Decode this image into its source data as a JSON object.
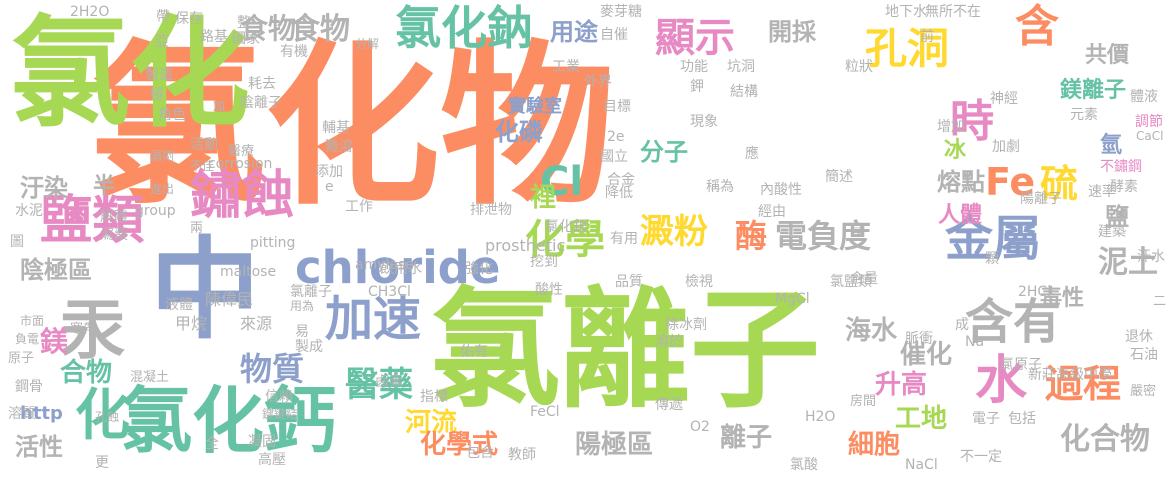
{
  "words": [
    {
      "text": "氯化物",
      "color": "#fc8d62"
    },
    {
      "text": "氯離子",
      "color": "#a6d854"
    },
    {
      "text": "氯化",
      "color": "#a6d854"
    },
    {
      "text": "中",
      "color": "#8da0cb"
    },
    {
      "text": "氯化鈣",
      "color": "#66c2a5"
    },
    {
      "text": "化",
      "color": "#66c2a5"
    },
    {
      "text": "汞",
      "color": "#b3b3b3"
    },
    {
      "text": "鹽類",
      "color": "#e78ac3"
    },
    {
      "text": "鏽蝕",
      "color": "#e78ac3"
    },
    {
      "text": "氯化鈉",
      "color": "#66c2a5"
    },
    {
      "text": "顯示",
      "color": "#e78ac3"
    },
    {
      "text": "孔洞",
      "color": "#ffd92f"
    },
    {
      "text": "含",
      "color": "#fc8d62"
    },
    {
      "text": "時",
      "color": "#e78ac3"
    },
    {
      "text": "硫",
      "color": "#ffd92f"
    },
    {
      "text": "Fe",
      "color": "#fc8d62"
    },
    {
      "text": "金屬",
      "color": "#8da0cb"
    },
    {
      "text": "chloride",
      "color": "#8da0cb"
    },
    {
      "text": "Cl",
      "color": "#66c2a5"
    },
    {
      "text": "化學",
      "color": "#a6d854"
    },
    {
      "text": "澱粉",
      "color": "#ffd92f"
    },
    {
      "text": "酶",
      "color": "#fc8d62"
    },
    {
      "text": "電負度",
      "color": "#b3b3b3"
    },
    {
      "text": "加速",
      "color": "#8da0cb"
    },
    {
      "text": "含有",
      "color": "#b3b3b3"
    },
    {
      "text": "水",
      "color": "#e78ac3"
    },
    {
      "text": "過程",
      "color": "#fc8d62"
    },
    {
      "text": "醫藥",
      "color": "#66c2a5"
    },
    {
      "text": "物質",
      "color": "#8da0cb"
    },
    {
      "text": "食物",
      "color": "#b3b3b3"
    },
    {
      "text": "用途",
      "color": "#8da0cb"
    },
    {
      "text": "開採",
      "color": "#b3b3b3"
    },
    {
      "text": "共價",
      "color": "#b3b3b3"
    },
    {
      "text": "鎂離子",
      "color": "#66c2a5"
    },
    {
      "text": "分子",
      "color": "#66c2a5"
    },
    {
      "text": "化磷",
      "color": "#8da0cb"
    },
    {
      "text": "熔點",
      "color": "#b3b3b3"
    },
    {
      "text": "冰",
      "color": "#a6d854"
    },
    {
      "text": "氫",
      "color": "#8da0cb"
    },
    {
      "text": "人體",
      "color": "#e78ac3"
    },
    {
      "text": "泥土",
      "color": "#b3b3b3"
    },
    {
      "text": "鹽",
      "color": "#b3b3b3"
    },
    {
      "text": "毒性",
      "color": "#b3b3b3"
    },
    {
      "text": "陰極區",
      "color": "#b3b3b3"
    },
    {
      "text": "汙染",
      "color": "#b3b3b3"
    },
    {
      "text": "半",
      "color": "#b3b3b3"
    },
    {
      "text": "合物",
      "color": "#66c2a5"
    },
    {
      "text": "鎂",
      "color": "#e78ac3"
    },
    {
      "text": "海水",
      "color": "#b3b3b3"
    },
    {
      "text": "升高",
      "color": "#e78ac3"
    },
    {
      "text": "催化",
      "color": "#b3b3b3"
    },
    {
      "text": "河流",
      "color": "#ffd92f"
    },
    {
      "text": "化學式",
      "color": "#fc8d62"
    },
    {
      "text": "陽極區",
      "color": "#b3b3b3"
    },
    {
      "text": "離子",
      "color": "#b3b3b3"
    },
    {
      "text": "細胞",
      "color": "#fc8d62"
    },
    {
      "text": "工地",
      "color": "#a6d854"
    },
    {
      "text": "化合物",
      "color": "#b3b3b3"
    },
    {
      "text": "活性",
      "color": "#b3b3b3"
    },
    {
      "text": "http",
      "color": "#8da0cb"
    },
    {
      "text": "實驗室",
      "color": "#8da0cb"
    },
    {
      "text": "裡",
      "color": "#a6d854"
    },
    {
      "text": "食物",
      "color": "#b3b3b3"
    },
    {
      "text": "不鏽鋼",
      "color": "#e78ac3"
    },
    {
      "text": "神經",
      "color": "#b3b3b3"
    },
    {
      "text": "元素",
      "color": "#b3b3b3"
    },
    {
      "text": "體液",
      "color": "#b3b3b3"
    },
    {
      "text": "調節",
      "color": "#e78ac3"
    },
    {
      "text": "CaCl",
      "color": "#b3b3b3"
    },
    {
      "text": "加劇",
      "color": "#b3b3b3"
    },
    {
      "text": "陽離子",
      "color": "#b3b3b3"
    },
    {
      "text": "速率",
      "color": "#b3b3b3"
    },
    {
      "text": "酵素",
      "color": "#b3b3b3"
    },
    {
      "text": "建築",
      "color": "#b3b3b3"
    },
    {
      "text": "汗水",
      "color": "#b3b3b3"
    },
    {
      "text": "退休",
      "color": "#b3b3b3"
    },
    {
      "text": "石油",
      "color": "#b3b3b3"
    },
    {
      "text": "嚴密",
      "color": "#b3b3b3"
    },
    {
      "text": "新莊高級中學",
      "color": "#b3b3b3"
    },
    {
      "text": "氯原子",
      "color": "#b3b3b3"
    },
    {
      "text": "電子",
      "color": "#b3b3b3"
    },
    {
      "text": "包括",
      "color": "#b3b3b3"
    },
    {
      "text": "房間",
      "color": "#b3b3b3"
    },
    {
      "text": "不一定",
      "color": "#b3b3b3"
    },
    {
      "text": "NaCl",
      "color": "#b3b3b3"
    },
    {
      "text": "H2O",
      "color": "#b3b3b3"
    },
    {
      "text": "氯酸",
      "color": "#b3b3b3"
    },
    {
      "text": "教師",
      "color": "#b3b3b3"
    },
    {
      "text": "包含",
      "color": "#b3b3b3"
    },
    {
      "text": "FeCl",
      "color": "#b3b3b3"
    },
    {
      "text": "傳遞",
      "color": "#b3b3b3"
    },
    {
      "text": "指標",
      "color": "#b3b3b3"
    },
    {
      "text": "鹵素",
      "color": "#b3b3b3"
    },
    {
      "text": "佑有",
      "color": "#b3b3b3"
    },
    {
      "text": "溶於",
      "color": "#b3b3b3"
    },
    {
      "text": "脈衝",
      "color": "#b3b3b3"
    },
    {
      "text": "成",
      "color": "#b3b3b3"
    },
    {
      "text": "Na",
      "color": "#b3b3b3"
    },
    {
      "text": "MgCl",
      "color": "#b3b3b3"
    },
    {
      "text": "含量",
      "color": "#b3b3b3"
    },
    {
      "text": "2HCl",
      "color": "#b3b3b3"
    },
    {
      "text": "除冰劑",
      "color": "#b3b3b3"
    },
    {
      "text": "檢視",
      "color": "#b3b3b3"
    },
    {
      "text": "品質",
      "color": "#b3b3b3"
    },
    {
      "text": "酸性",
      "color": "#b3b3b3"
    },
    {
      "text": "CH3Cl",
      "color": "#b3b3b3"
    },
    {
      "text": "氯離子",
      "color": "#b3b3b3"
    },
    {
      "text": "強化",
      "color": "#b3b3b3"
    },
    {
      "text": "飲用水",
      "color": "#b3b3b3"
    },
    {
      "text": "挖到",
      "color": "#b3b3b3"
    },
    {
      "text": "prosthetic",
      "color": "#b3b3b3"
    },
    {
      "text": "amylase",
      "color": "#b3b3b3"
    },
    {
      "text": "maltose",
      "color": "#b3b3b3"
    },
    {
      "text": "pitting",
      "color": "#b3b3b3"
    },
    {
      "text": "陳偉民",
      "color": "#b3b3b3"
    },
    {
      "text": "液體",
      "color": "#b3b3b3"
    },
    {
      "text": "甲烷",
      "color": "#b3b3b3"
    },
    {
      "text": "來源",
      "color": "#b3b3b3"
    },
    {
      "text": "易",
      "color": "#b3b3b3"
    },
    {
      "text": "製成",
      "color": "#b3b3b3"
    },
    {
      "text": "用為",
      "color": "#b3b3b3"
    },
    {
      "text": "信賴",
      "color": "#b3b3b3"
    },
    {
      "text": "鍵鍵結",
      "color": "#b3b3b3"
    },
    {
      "text": "高壓",
      "color": "#b3b3b3"
    },
    {
      "text": "凝固",
      "color": "#b3b3b3"
    },
    {
      "text": "全",
      "color": "#b3b3b3"
    },
    {
      "text": "更",
      "color": "#b3b3b3"
    },
    {
      "text": "孔蝕",
      "color": "#b3b3b3"
    },
    {
      "text": "混凝土",
      "color": "#b3b3b3"
    },
    {
      "text": "溶質",
      "color": "#b3b3b3"
    },
    {
      "text": "鋼骨",
      "color": "#b3b3b3"
    },
    {
      "text": "原子",
      "color": "#b3b3b3"
    },
    {
      "text": "負電",
      "color": "#b3b3b3"
    },
    {
      "text": "市面",
      "color": "#b3b3b3"
    },
    {
      "text": "寒帶",
      "color": "#b3b3b3"
    },
    {
      "text": "圖",
      "color": "#b3b3b3"
    },
    {
      "text": "水泥",
      "color": "#b3b3b3"
    },
    {
      "text": "解離",
      "color": "#b3b3b3"
    },
    {
      "text": "瀉藥",
      "color": "#b3b3b3"
    },
    {
      "text": "進出",
      "color": "#b3b3b3"
    },
    {
      "text": "group",
      "color": "#b3b3b3"
    },
    {
      "text": "活動",
      "color": "#b3b3b3"
    },
    {
      "text": "漏劑",
      "color": "#b3b3b3"
    },
    {
      "text": "不佳",
      "color": "#b3b3b3"
    },
    {
      "text": "角色",
      "color": "#b3b3b3"
    },
    {
      "text": "醫療",
      "color": "#b3b3b3"
    },
    {
      "text": "陰離子",
      "color": "#b3b3b3"
    },
    {
      "text": "耗去",
      "color": "#b3b3b3"
    },
    {
      "text": "有機",
      "color": "#b3b3b3"
    },
    {
      "text": "分解",
      "color": "#b3b3b3"
    },
    {
      "text": "輔基",
      "color": "#b3b3b3"
    },
    {
      "text": "難溶",
      "color": "#b3b3b3"
    },
    {
      "text": "corrosion",
      "color": "#b3b3b3"
    },
    {
      "text": "添加",
      "color": "#b3b3b3"
    },
    {
      "text": "工作",
      "color": "#b3b3b3"
    },
    {
      "text": "兩",
      "color": "#b3b3b3"
    },
    {
      "text": "2H2O",
      "color": "#b3b3b3"
    },
    {
      "text": "帶",
      "color": "#b3b3b3"
    },
    {
      "text": "保存",
      "color": "#b3b3b3"
    },
    {
      "text": "路基",
      "color": "#b3b3b3"
    },
    {
      "text": "亞",
      "color": "#b3b3b3"
    },
    {
      "text": "製造",
      "color": "#b3b3b3"
    },
    {
      "text": "極",
      "color": "#b3b3b3"
    },
    {
      "text": "加",
      "color": "#b3b3b3"
    },
    {
      "text": "整",
      "color": "#b3b3b3"
    },
    {
      "text": "國家",
      "color": "#b3b3b3"
    },
    {
      "text": "麥芽糖",
      "color": "#b3b3b3"
    },
    {
      "text": "自催",
      "color": "#b3b3b3"
    },
    {
      "text": "工業",
      "color": "#b3b3b3"
    },
    {
      "text": "外界",
      "color": "#b3b3b3"
    },
    {
      "text": "功能",
      "color": "#b3b3b3"
    },
    {
      "text": "坑洞",
      "color": "#b3b3b3"
    },
    {
      "text": "粒狀",
      "color": "#b3b3b3"
    },
    {
      "text": "地下水",
      "color": "#b3b3b3"
    },
    {
      "text": "無所不在",
      "color": "#b3b3b3"
    },
    {
      "text": "前",
      "color": "#b3b3b3"
    },
    {
      "text": "鉀",
      "color": "#b3b3b3"
    },
    {
      "text": "結構",
      "color": "#b3b3b3"
    },
    {
      "text": "目標",
      "color": "#b3b3b3"
    },
    {
      "text": "現象",
      "color": "#b3b3b3"
    },
    {
      "text": "2e",
      "color": "#b3b3b3"
    },
    {
      "text": "國立",
      "color": "#b3b3b3"
    },
    {
      "text": "合金",
      "color": "#b3b3b3"
    },
    {
      "text": "應",
      "color": "#b3b3b3"
    },
    {
      "text": "稱為",
      "color": "#b3b3b3"
    },
    {
      "text": "內酸性",
      "color": "#b3b3b3"
    },
    {
      "text": "經由",
      "color": "#b3b3b3"
    },
    {
      "text": "簡述",
      "color": "#b3b3b3"
    },
    {
      "text": "氯化銀",
      "color": "#b3b3b3"
    },
    {
      "text": "有用",
      "color": "#b3b3b3"
    },
    {
      "text": "降低",
      "color": "#b3b3b3"
    },
    {
      "text": "排泄物",
      "color": "#b3b3b3"
    },
    {
      "text": "氯鹽類",
      "color": "#b3b3b3"
    },
    {
      "text": "身",
      "color": "#b3b3b3"
    },
    {
      "text": "增加",
      "color": "#b3b3b3"
    },
    {
      "text": "顆",
      "color": "#b3b3b3"
    },
    {
      "text": "二",
      "color": "#b3b3b3"
    },
    {
      "text": "O2",
      "color": "#b3b3b3"
    },
    {
      "text": "e",
      "color": "#b3b3b3"
    },
    {
      "text": "快",
      "color": "#b3b3b3"
    },
    {
      "text": "述",
      "color": "#b3b3b3"
    }
  ]
}
